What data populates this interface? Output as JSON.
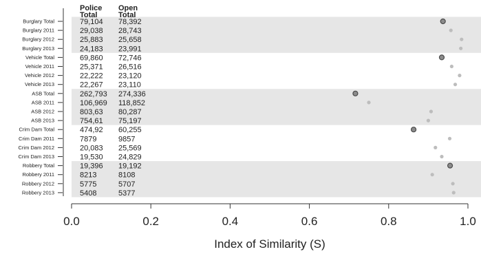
{
  "chart_data": {
    "type": "scatter",
    "title": "",
    "xlabel": "Index of Similarity (S)",
    "ylabel": "",
    "xlim": [
      0.0,
      1.0
    ],
    "xticks": [
      "0.0",
      "0.2",
      "0.4",
      "0.6",
      "0.8",
      "1.0"
    ],
    "grid": false,
    "column_headers": [
      {
        "line1": "Police",
        "line2": "Total"
      },
      {
        "line1": "Open",
        "line2": "Total"
      }
    ],
    "groups": [
      {
        "rows": [
          {
            "label": "Burglary Total",
            "police": "79,104",
            "open": "78,392",
            "s": 0.937,
            "total": true
          },
          {
            "label": "Burglary 2011",
            "police": "29,038",
            "open": "28,743",
            "s": 0.957,
            "total": false
          },
          {
            "label": "Burglary 2012",
            "police": "25,883",
            "open": "25,658",
            "s": 0.984,
            "total": false
          },
          {
            "label": "Burglary 2013",
            "police": "24,183",
            "open": "23,991",
            "s": 0.982,
            "total": false
          }
        ]
      },
      {
        "rows": [
          {
            "label": "Vehicle Total",
            "police": "69,860",
            "open": "72,746",
            "s": 0.934,
            "total": true
          },
          {
            "label": "Vehicle 2011",
            "police": "25,371",
            "open": "26,516",
            "s": 0.959,
            "total": false
          },
          {
            "label": "Vehicle 2012",
            "police": "22,222",
            "open": "23,120",
            "s": 0.979,
            "total": false
          },
          {
            "label": "Vehicle 2013",
            "police": "22,267",
            "open": "23,110",
            "s": 0.968,
            "total": false
          }
        ]
      },
      {
        "rows": [
          {
            "label": "ASB Total",
            "police": "262,793",
            "open": "274,336",
            "s": 0.716,
            "total": true
          },
          {
            "label": "ASB 2011",
            "police": "106,969",
            "open": "118,852",
            "s": 0.75,
            "total": false
          },
          {
            "label": "ASB 2012",
            "police": "803,63",
            "open": "80,287",
            "s": 0.907,
            "total": false
          },
          {
            "label": "ASB 2013",
            "police": "754,61",
            "open": "75,197",
            "s": 0.9,
            "total": false
          }
        ]
      },
      {
        "rows": [
          {
            "label": "Crim Dam Total",
            "police": "474,92",
            "open": "60,255",
            "s": 0.863,
            "total": true
          },
          {
            "label": "Crim Dam 2011",
            "police": "7879",
            "open": "9857",
            "s": 0.954,
            "total": false
          },
          {
            "label": "Crim Dam 2012",
            "police": "20,083",
            "open": "25,569",
            "s": 0.918,
            "total": false
          },
          {
            "label": "Crim Dam 2013",
            "police": "19,530",
            "open": "24,829",
            "s": 0.934,
            "total": false
          }
        ]
      },
      {
        "rows": [
          {
            "label": "Robbery Total",
            "police": "19,396",
            "open": "19,192",
            "s": 0.955,
            "total": true
          },
          {
            "label": "Robbery 2011",
            "police": "8213",
            "open": "8108",
            "s": 0.91,
            "total": false
          },
          {
            "label": "Robbery 2012",
            "police": "5775",
            "open": "5707",
            "s": 0.962,
            "total": false
          },
          {
            "label": "Robbery 2013",
            "police": "5408",
            "open": "5377",
            "s": 0.964,
            "total": false
          }
        ]
      }
    ],
    "colors": {
      "band": "#e6e6e6",
      "total_marker_fill": "#8c8c8c",
      "total_marker_stroke": "#4a4a4a",
      "year_marker_fill": "#bdbdbd",
      "axis": "#333333"
    }
  }
}
